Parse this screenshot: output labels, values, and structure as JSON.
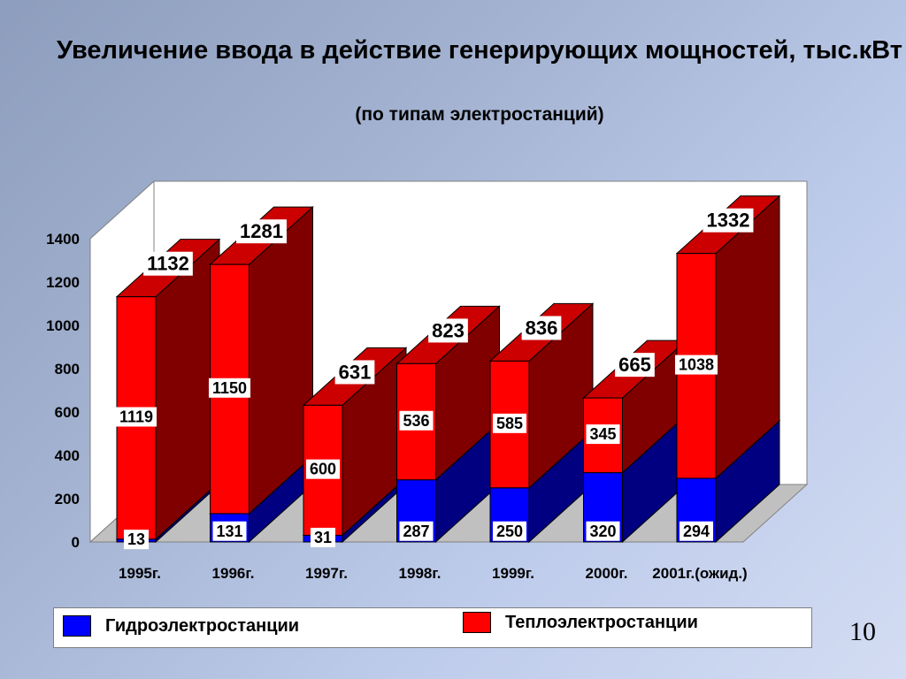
{
  "header": {
    "title": "Увеличение ввода в действие генерирующих мощностей, тыс.кВт",
    "subtitle": "(по типам электростанций)"
  },
  "chart_data": {
    "type": "bar",
    "stacked": true,
    "categories": [
      "1995г.",
      "1996г.",
      "1997г.",
      "1998г.",
      "1999г.",
      "2000г.",
      "2001г.(ожид.)"
    ],
    "series": [
      {
        "name": "Гидроэлектростанции",
        "color": "#0000ff",
        "values": [
          13,
          131,
          31,
          287,
          250,
          320,
          294
        ]
      },
      {
        "name": "Теплоэлектростанции",
        "color": "#ff0000",
        "values": [
          1119,
          1150,
          600,
          536,
          585,
          345,
          1038
        ]
      }
    ],
    "totals": [
      1132,
      1281,
      631,
      823,
      836,
      665,
      1332
    ],
    "yticks": [
      "0",
      "200",
      "400",
      "600",
      "800",
      "1000",
      "1200",
      "1400"
    ],
    "ylim": [
      0,
      1400
    ],
    "grid": false,
    "legend_position": "bottom",
    "style": "3d"
  },
  "page_number": "10"
}
